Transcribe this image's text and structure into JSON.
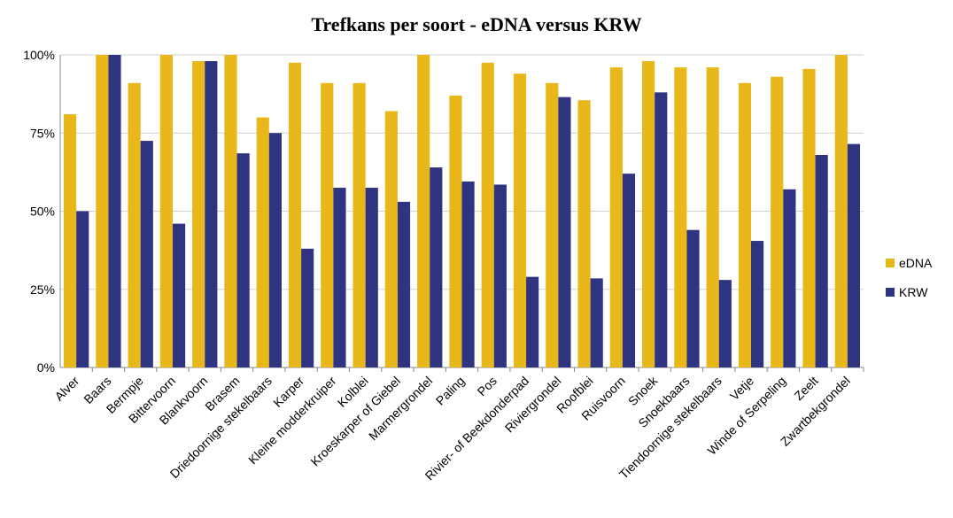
{
  "chart_data": {
    "type": "bar",
    "title": "Trefkans per soort - eDNA versus KRW",
    "categories": [
      "Alver",
      "Baars",
      "Bermpje",
      "Bittervoorn",
      "Blankvoorn",
      "Brasem",
      "Driedoornige stekelbaars",
      "Karper",
      "Kleine modderkruiper",
      "Kolblei",
      "Kroeskarper of Giebel",
      "Marmergrondel",
      "Paling",
      "Pos",
      "Rivier- of Beekdonderpad",
      "Riviergrondel",
      "Roofblei",
      "Ruisvoorn",
      "Snoek",
      "Snoekbaars",
      "Tiendoornige stekelbaars",
      "Vetje",
      "Winde of Serpeling",
      "Zeelt",
      "Zwartbekgrondel"
    ],
    "series": [
      {
        "name": "eDNA",
        "color": "#e8b71a",
        "values": [
          81,
          100,
          91,
          100,
          98,
          100,
          80,
          97.5,
          91,
          91,
          82,
          100,
          87,
          97.5,
          94,
          91,
          85.5,
          96,
          98,
          96,
          96,
          91,
          93,
          95.5,
          100
        ]
      },
      {
        "name": "KRW",
        "color": "#2e3480",
        "values": [
          50,
          100,
          72.5,
          46,
          98,
          68.5,
          75,
          38,
          57.5,
          57.5,
          53,
          64,
          59.5,
          58.5,
          29,
          86.5,
          28.5,
          62,
          88,
          44,
          28,
          40.5,
          57,
          68,
          71.5
        ]
      }
    ],
    "ylim": [
      0,
      100
    ],
    "yticks": [
      {
        "value": 0,
        "label": "0%"
      },
      {
        "value": 25,
        "label": "25%"
      },
      {
        "value": 50,
        "label": "50%"
      },
      {
        "value": 75,
        "label": "75%"
      },
      {
        "value": 100,
        "label": "100%"
      }
    ],
    "grid": true,
    "legend": "right"
  }
}
